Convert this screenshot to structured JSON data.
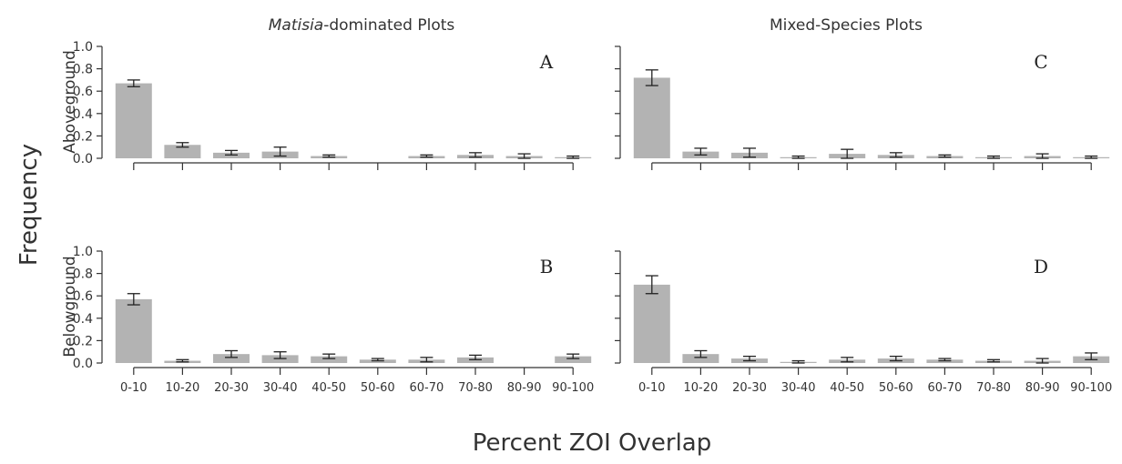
{
  "figure": {
    "ylabel": "Frequency",
    "xlabel": "Percent ZOI Overlap",
    "col_titles": [
      "Matisia",
      "-dominated Plots",
      "Mixed-Species Plots"
    ],
    "row_labels": [
      "Aboveground",
      "Belowground"
    ],
    "categories": [
      "0-10",
      "10-20",
      "20-30",
      "30-40",
      "40-50",
      "50-60",
      "60-70",
      "70-80",
      "80-90",
      "90-100"
    ],
    "yticks": [
      "0.0",
      "0.2",
      "0.4",
      "0.6",
      "0.8",
      "1.0"
    ]
  },
  "chart_data": [
    {
      "type": "bar",
      "panel": "A",
      "group": "Matisia-dominated Plots",
      "ylabel": "Aboveground",
      "ylim": [
        0,
        1
      ],
      "categories": [
        "0-10",
        "10-20",
        "20-30",
        "30-40",
        "40-50",
        "50-60",
        "60-70",
        "70-80",
        "80-90",
        "90-100"
      ],
      "values": [
        0.67,
        0.12,
        0.05,
        0.06,
        0.02,
        null,
        0.02,
        0.03,
        0.02,
        0.01
      ],
      "errors": [
        0.03,
        0.02,
        0.02,
        0.04,
        0.01,
        null,
        0.01,
        0.02,
        0.02,
        0.01
      ]
    },
    {
      "type": "bar",
      "panel": "B",
      "group": "Matisia-dominated Plots",
      "ylabel": "Belowground",
      "ylim": [
        0,
        1
      ],
      "categories": [
        "0-10",
        "10-20",
        "20-30",
        "30-40",
        "40-50",
        "50-60",
        "60-70",
        "70-80",
        "80-90",
        "90-100"
      ],
      "values": [
        0.57,
        0.02,
        0.08,
        0.07,
        0.06,
        0.03,
        0.03,
        0.05,
        null,
        0.06
      ],
      "errors": [
        0.05,
        0.01,
        0.03,
        0.03,
        0.02,
        0.01,
        0.02,
        0.02,
        null,
        0.02
      ]
    },
    {
      "type": "bar",
      "panel": "C",
      "group": "Mixed-Species Plots",
      "ylabel": "Aboveground",
      "ylim": [
        0,
        1
      ],
      "categories": [
        "0-10",
        "10-20",
        "20-30",
        "30-40",
        "40-50",
        "50-60",
        "60-70",
        "70-80",
        "80-90",
        "90-100"
      ],
      "values": [
        0.72,
        0.06,
        0.05,
        0.01,
        0.04,
        0.03,
        0.02,
        0.01,
        0.02,
        0.01
      ],
      "errors": [
        0.07,
        0.03,
        0.04,
        0.01,
        0.04,
        0.02,
        0.01,
        0.01,
        0.02,
        0.01
      ]
    },
    {
      "type": "bar",
      "panel": "D",
      "group": "Mixed-Species Plots",
      "ylabel": "Belowground",
      "ylim": [
        0,
        1
      ],
      "categories": [
        "0-10",
        "10-20",
        "20-30",
        "30-40",
        "40-50",
        "50-60",
        "60-70",
        "70-80",
        "80-90",
        "90-100"
      ],
      "values": [
        0.7,
        0.08,
        0.04,
        0.01,
        0.03,
        0.04,
        0.03,
        0.02,
        0.02,
        0.06
      ],
      "errors": [
        0.08,
        0.03,
        0.02,
        0.01,
        0.02,
        0.02,
        0.01,
        0.01,
        0.02,
        0.03
      ]
    }
  ]
}
